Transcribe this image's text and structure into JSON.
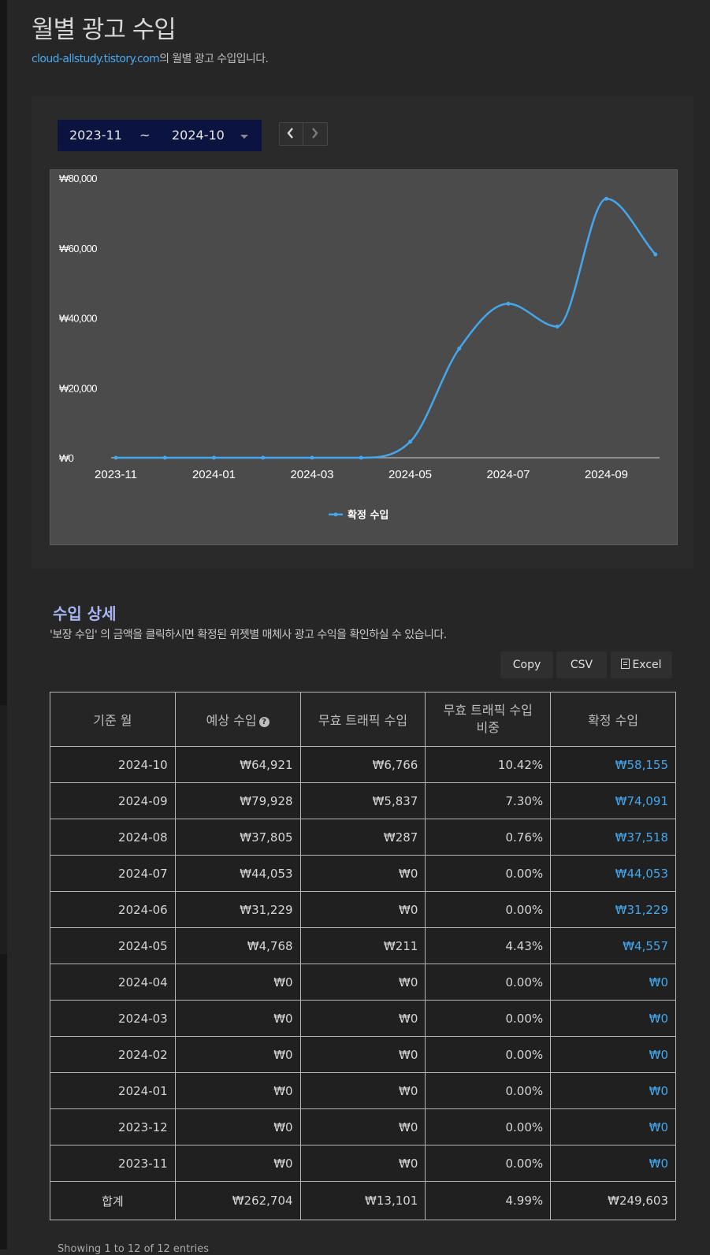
{
  "page": {
    "title": "월별 광고 수입",
    "subtitle_link": "cloud-allstudy.tistory.com",
    "subtitle_rest": "의 월별 광고 수입입니다."
  },
  "range": {
    "from": "2023-11",
    "tilde": "~",
    "to": "2024-10"
  },
  "icons": {
    "caret": "chevron-down-icon",
    "prev": "chevron-left-icon",
    "next": "chevron-right-icon",
    "help": "question-circle-icon",
    "excel": "file-excel-icon"
  },
  "chart_data": {
    "type": "line",
    "x": [
      "2023-11",
      "2023-12",
      "2024-01",
      "2024-02",
      "2024-03",
      "2024-04",
      "2024-05",
      "2024-06",
      "2024-07",
      "2024-08",
      "2024-09",
      "2024-10"
    ],
    "x_tick_labels": [
      "2023-11",
      "2024-01",
      "2024-03",
      "2024-05",
      "2024-07",
      "2024-09"
    ],
    "series": [
      {
        "name": "확정 수입",
        "color": "#44a6ec",
        "values": [
          0,
          0,
          0,
          0,
          0,
          0,
          4557,
          31229,
          44053,
          37518,
          74091,
          58155
        ]
      }
    ],
    "y_ticks": [
      "₩0",
      "₩20,000",
      "₩40,000",
      "₩60,000",
      "₩80,000"
    ],
    "ylim": [
      0,
      80000
    ],
    "legend_position": "bottom-center",
    "grid": false
  },
  "detail": {
    "title": "수입 상세",
    "desc": "'보장 수입' 의 금액을 클릭하시면 확정된 위젯별 매체사 광고 수익을 확인하실 수 있습니다.",
    "buttons": {
      "copy": "Copy",
      "csv": "CSV",
      "excel": "Excel"
    }
  },
  "table": {
    "headers": [
      "기준 월",
      "예상 수입",
      "무효 트래픽 수입",
      "무효 트래픽 수입\n비중",
      "확정 수입"
    ],
    "rows": [
      [
        "2024-10",
        "₩64,921",
        "₩6,766",
        "10.42%",
        "₩58,155"
      ],
      [
        "2024-09",
        "₩79,928",
        "₩5,837",
        "7.30%",
        "₩74,091"
      ],
      [
        "2024-08",
        "₩37,805",
        "₩287",
        "0.76%",
        "₩37,518"
      ],
      [
        "2024-07",
        "₩44,053",
        "₩0",
        "0.00%",
        "₩44,053"
      ],
      [
        "2024-06",
        "₩31,229",
        "₩0",
        "0.00%",
        "₩31,229"
      ],
      [
        "2024-05",
        "₩4,768",
        "₩211",
        "4.43%",
        "₩4,557"
      ],
      [
        "2024-04",
        "₩0",
        "₩0",
        "0.00%",
        "₩0"
      ],
      [
        "2024-03",
        "₩0",
        "₩0",
        "0.00%",
        "₩0"
      ],
      [
        "2024-02",
        "₩0",
        "₩0",
        "0.00%",
        "₩0"
      ],
      [
        "2024-01",
        "₩0",
        "₩0",
        "0.00%",
        "₩0"
      ],
      [
        "2023-12",
        "₩0",
        "₩0",
        "0.00%",
        "₩0"
      ],
      [
        "2023-11",
        "₩0",
        "₩0",
        "0.00%",
        "₩0"
      ]
    ],
    "total": [
      "합계",
      "₩262,704",
      "₩13,101",
      "4.99%",
      "₩249,603"
    ]
  },
  "footer": {
    "info": "Showing 1 to 12 of 12 entries"
  }
}
